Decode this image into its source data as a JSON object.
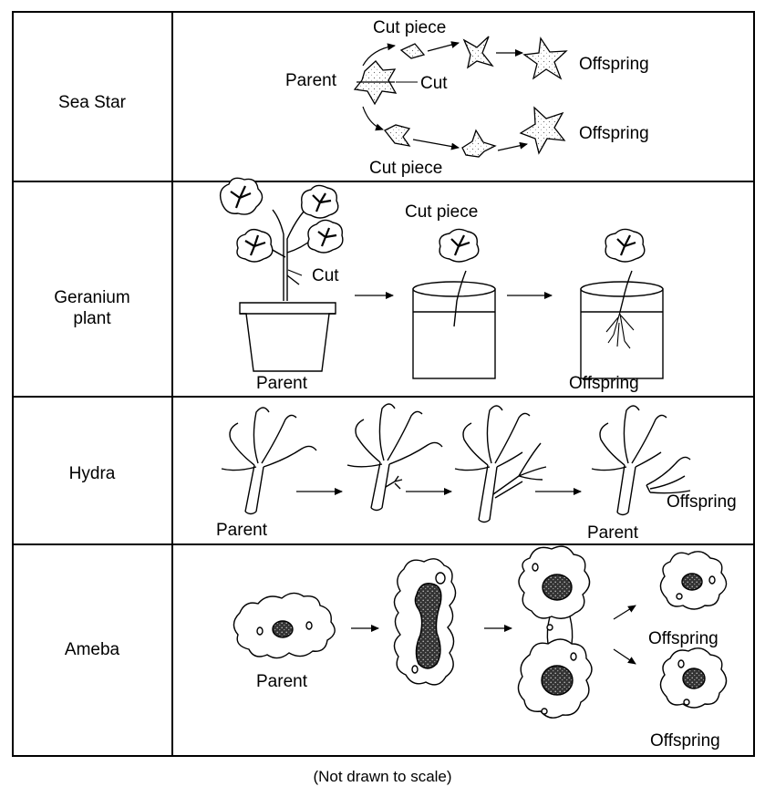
{
  "rows": [
    {
      "organism": "Sea Star",
      "labels": {
        "cut_piece_top": "Cut piece",
        "parent": "Parent",
        "cut": "Cut",
        "offspring_top": "Offspring",
        "offspring_bottom": "Offspring",
        "cut_piece_bottom": "Cut piece"
      }
    },
    {
      "organism_line1": "Geranium",
      "organism_line2": "plant",
      "labels": {
        "cut_piece": "Cut piece",
        "cut": "Cut",
        "parent": "Parent",
        "offspring": "Offspring"
      }
    },
    {
      "organism": "Hydra",
      "labels": {
        "parent_left": "Parent",
        "parent_right": "Parent",
        "offspring": "Offspring"
      }
    },
    {
      "organism": "Ameba",
      "labels": {
        "parent": "Parent",
        "offspring_top": "Offspring",
        "offspring_bottom": "Offspring"
      }
    }
  ],
  "caption": "(Not drawn to scale)",
  "colors": {
    "line": "#000000",
    "fill": "#ffffff",
    "stipple": "#555555",
    "nucleus": "#3a3a3a"
  }
}
